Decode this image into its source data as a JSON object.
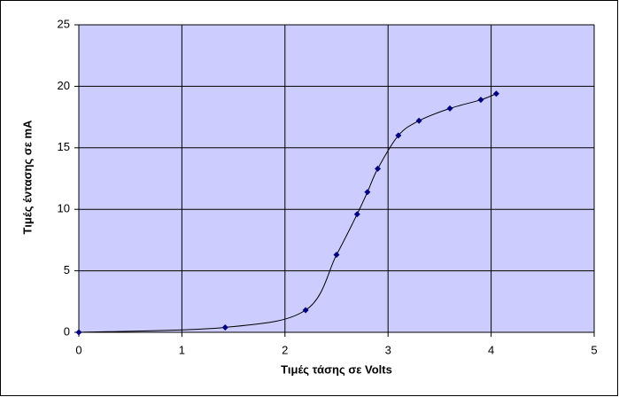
{
  "chart_data": {
    "type": "scatter",
    "x_label": "Τιμές τάσης σε Volts",
    "y_label": "Τιμές έντασης σε mA",
    "series": [
      {
        "color": "#000080",
        "x": [
          0,
          1.42,
          2.2,
          2.5,
          2.7,
          2.8,
          2.9,
          3.1,
          3.3,
          3.6,
          3.9,
          4.05
        ],
        "values": [
          0,
          0.4,
          1.8,
          6.3,
          9.6,
          11.4,
          13.3,
          16,
          17.2,
          18.2,
          18.9,
          19.4
        ]
      }
    ],
    "xlim": [
      0,
      5
    ],
    "xticks": [
      0,
      1,
      2,
      3,
      4,
      5
    ],
    "ylim": [
      0,
      25
    ],
    "yticks": [
      0,
      5,
      10,
      15,
      20,
      25
    ],
    "grid": true,
    "smooth": true,
    "background": "#ccccff"
  }
}
